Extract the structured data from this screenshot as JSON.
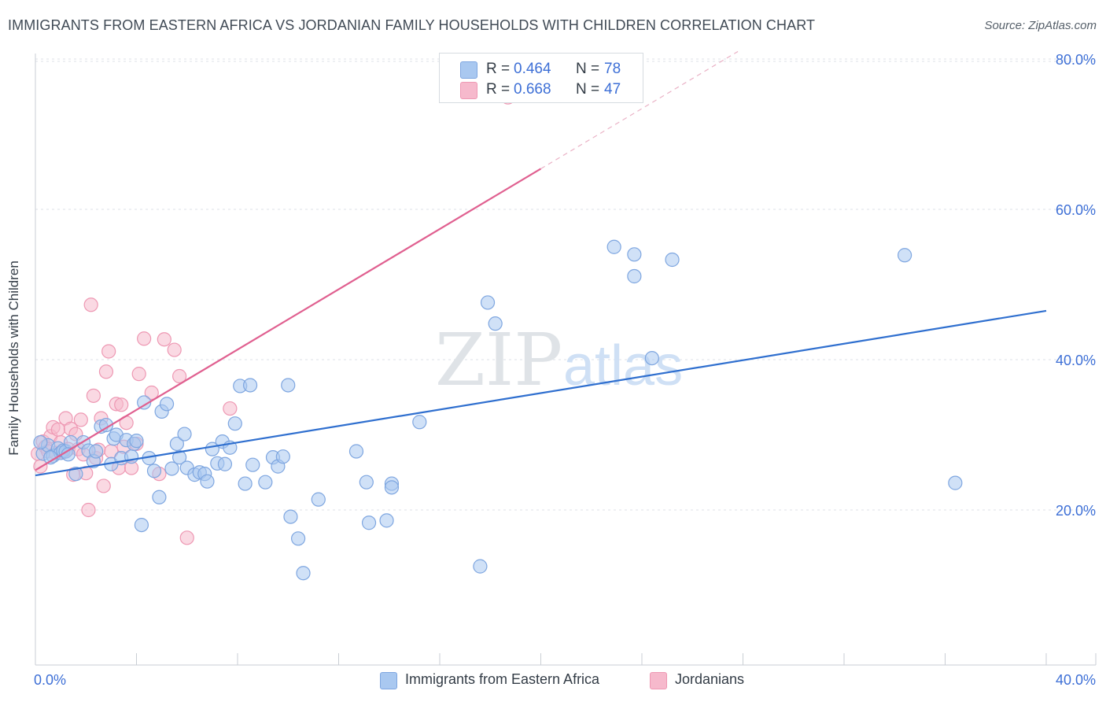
{
  "header": {
    "title": "IMMIGRANTS FROM EASTERN AFRICA VS JORDANIAN FAMILY HOUSEHOLDS WITH CHILDREN CORRELATION CHART",
    "source": "Source: ZipAtlas.com"
  },
  "watermark": {
    "zip": "ZIP",
    "atlas": "atlas"
  },
  "legend": {
    "r_label": "R =",
    "n_label": "N =",
    "series1": {
      "r": "0.464",
      "n": "78"
    },
    "series2": {
      "r": "0.668",
      "n": "47"
    }
  },
  "bottom_legend": {
    "series1": "Immigrants from Eastern Africa",
    "series2": "Jordanians"
  },
  "colors": {
    "series1_fill": "#a9c8f0",
    "series1_stroke": "#7ea6e0",
    "series1_line": "#2f6fcf",
    "series2_fill": "#f6b9cc",
    "series2_stroke": "#ee98b3",
    "series2_line": "#e06090",
    "axis_text": "#3d6fd6",
    "grid": "#dde2e7"
  },
  "chart_data": {
    "type": "scatter",
    "title": "IMMIGRANTS FROM EASTERN AFRICA VS JORDANIAN FAMILY HOUSEHOLDS WITH CHILDREN CORRELATION CHART",
    "xlabel": "",
    "ylabel": "Family Households with Children",
    "xlim": [
      0,
      40
    ],
    "ylim": [
      0,
      80
    ],
    "x_tick_labels": [
      {
        "value": 0,
        "label": "0.0%"
      },
      {
        "value": 40,
        "label": "40.0%"
      }
    ],
    "y_tick_labels": [
      {
        "value": 20,
        "label": "20.0%"
      },
      {
        "value": 40,
        "label": "40.0%"
      },
      {
        "value": 60,
        "label": "60.0%"
      },
      {
        "value": 80,
        "label": "80.0%"
      }
    ],
    "series": [
      {
        "name": "Immigrants from Eastern Africa",
        "r": 0.464,
        "n": 78,
        "trend": {
          "x0": 0,
          "y0": 24.6,
          "x1": 40,
          "y1": 46.5
        },
        "points": [
          [
            0.3,
            27.5
          ],
          [
            0.5,
            28.6
          ],
          [
            0.7,
            27.2
          ],
          [
            0.9,
            28.2
          ],
          [
            1.0,
            27.6
          ],
          [
            1.1,
            27.9
          ],
          [
            1.2,
            27.8
          ],
          [
            1.4,
            29.0
          ],
          [
            1.6,
            24.8
          ],
          [
            1.9,
            29.0
          ],
          [
            2.1,
            27.9
          ],
          [
            2.3,
            26.5
          ],
          [
            2.4,
            27.8
          ],
          [
            2.6,
            31.1
          ],
          [
            2.8,
            31.3
          ],
          [
            3.0,
            26.1
          ],
          [
            3.1,
            29.5
          ],
          [
            3.2,
            30.0
          ],
          [
            3.4,
            26.9
          ],
          [
            3.6,
            29.3
          ],
          [
            3.8,
            27.1
          ],
          [
            3.9,
            28.8
          ],
          [
            4.0,
            29.2
          ],
          [
            4.2,
            18.0
          ],
          [
            4.3,
            34.3
          ],
          [
            4.5,
            26.9
          ],
          [
            4.7,
            25.2
          ],
          [
            4.9,
            21.7
          ],
          [
            5.0,
            33.1
          ],
          [
            5.2,
            34.1
          ],
          [
            5.4,
            25.5
          ],
          [
            5.6,
            28.8
          ],
          [
            5.7,
            27.0
          ],
          [
            5.9,
            30.1
          ],
          [
            6.0,
            25.6
          ],
          [
            6.3,
            24.7
          ],
          [
            6.5,
            25.0
          ],
          [
            6.7,
            24.8
          ],
          [
            6.8,
            23.8
          ],
          [
            7.0,
            28.1
          ],
          [
            7.2,
            26.2
          ],
          [
            7.4,
            29.1
          ],
          [
            7.5,
            26.1
          ],
          [
            7.7,
            28.3
          ],
          [
            7.9,
            31.5
          ],
          [
            8.1,
            36.5
          ],
          [
            8.3,
            23.5
          ],
          [
            8.5,
            36.6
          ],
          [
            8.6,
            26.0
          ],
          [
            9.1,
            23.7
          ],
          [
            9.4,
            27.0
          ],
          [
            9.6,
            25.8
          ],
          [
            9.8,
            27.1
          ],
          [
            10.0,
            36.6
          ],
          [
            10.1,
            19.1
          ],
          [
            10.4,
            16.2
          ],
          [
            10.6,
            11.6
          ],
          [
            11.2,
            21.4
          ],
          [
            12.7,
            27.8
          ],
          [
            13.1,
            23.7
          ],
          [
            13.2,
            18.3
          ],
          [
            13.9,
            18.6
          ],
          [
            14.1,
            23.5
          ],
          [
            14.1,
            23.0
          ],
          [
            15.2,
            31.7
          ],
          [
            17.6,
            12.5
          ],
          [
            17.9,
            47.6
          ],
          [
            18.2,
            44.8
          ],
          [
            22.9,
            55.0
          ],
          [
            23.7,
            54.0
          ],
          [
            23.7,
            51.1
          ],
          [
            24.4,
            40.2
          ],
          [
            25.2,
            53.3
          ],
          [
            34.4,
            53.9
          ],
          [
            36.4,
            23.6
          ],
          [
            0.2,
            29.0
          ],
          [
            0.6,
            27.0
          ],
          [
            1.3,
            27.4
          ]
        ]
      },
      {
        "name": "Jordanians",
        "r": 0.668,
        "n": 47,
        "trend": {
          "x0": 0,
          "y0": 25.3,
          "x1": 20,
          "y1": 65.4
        },
        "trend_dashed": {
          "x0": 20,
          "y0": 65.4,
          "x1": 27.8,
          "y1": 81.0
        },
        "points": [
          [
            0.1,
            27.5
          ],
          [
            0.2,
            25.8
          ],
          [
            0.3,
            29.1
          ],
          [
            0.4,
            28.4
          ],
          [
            0.5,
            27.8
          ],
          [
            0.6,
            29.8
          ],
          [
            0.7,
            31.0
          ],
          [
            0.8,
            27.6
          ],
          [
            0.9,
            30.7
          ],
          [
            1.0,
            29.0
          ],
          [
            1.1,
            27.7
          ],
          [
            1.2,
            32.2
          ],
          [
            1.3,
            28.1
          ],
          [
            1.4,
            30.8
          ],
          [
            1.5,
            24.7
          ],
          [
            1.6,
            30.1
          ],
          [
            1.7,
            28.1
          ],
          [
            1.8,
            32.0
          ],
          [
            1.9,
            27.4
          ],
          [
            2.0,
            24.9
          ],
          [
            2.1,
            20.0
          ],
          [
            2.2,
            47.3
          ],
          [
            2.3,
            35.2
          ],
          [
            2.4,
            26.9
          ],
          [
            2.5,
            28.0
          ],
          [
            2.6,
            32.2
          ],
          [
            2.7,
            23.2
          ],
          [
            2.8,
            38.4
          ],
          [
            2.9,
            41.1
          ],
          [
            3.0,
            27.8
          ],
          [
            3.2,
            34.1
          ],
          [
            3.3,
            25.6
          ],
          [
            3.4,
            34.0
          ],
          [
            3.5,
            28.4
          ],
          [
            3.6,
            31.6
          ],
          [
            3.8,
            25.6
          ],
          [
            4.0,
            28.8
          ],
          [
            4.1,
            38.1
          ],
          [
            4.3,
            42.8
          ],
          [
            4.6,
            35.6
          ],
          [
            4.9,
            24.8
          ],
          [
            5.1,
            42.7
          ],
          [
            5.5,
            41.3
          ],
          [
            5.7,
            37.8
          ],
          [
            6.0,
            16.3
          ],
          [
            7.7,
            33.5
          ],
          [
            18.7,
            74.9
          ]
        ]
      }
    ]
  }
}
